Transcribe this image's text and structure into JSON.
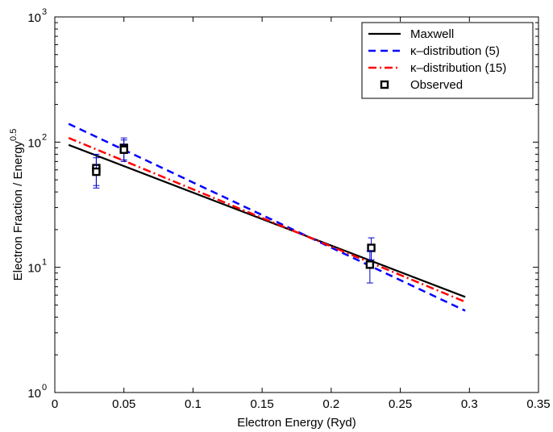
{
  "chart_data": {
    "type": "line",
    "title": "",
    "xlabel": "Electron Energy (Ryd)",
    "ylabel_main": "Electron Fraction / Energy",
    "ylabel_sup": "0.5",
    "xlim": [
      0,
      0.35
    ],
    "ylim": [
      1,
      1000
    ],
    "yscale": "log",
    "grid": false,
    "legend_position": "top-right",
    "x_ticks": [
      0,
      0.05,
      0.1,
      0.15,
      0.2,
      0.25,
      0.3,
      0.35
    ],
    "x_tick_labels": [
      "0",
      "0.05",
      "0.1",
      "0.15",
      "0.2",
      "0.25",
      "0.3",
      "0.35"
    ],
    "y_ticks": [
      1,
      10,
      100,
      1000
    ],
    "y_tick_labels": [
      {
        "base": "10",
        "exp": "0"
      },
      {
        "base": "10",
        "exp": "1"
      },
      {
        "base": "10",
        "exp": "2"
      },
      {
        "base": "10",
        "exp": "3"
      }
    ],
    "series": [
      {
        "name": "Maxwell",
        "style": "solid",
        "color": "#000000",
        "x": [
          0.01,
          0.297
        ],
        "y": [
          95,
          5.8
        ]
      },
      {
        "name": "κ–distribution (5)",
        "style": "dashed",
        "color": "#0000ff",
        "x": [
          0.01,
          0.297
        ],
        "y": [
          140,
          4.5
        ]
      },
      {
        "name": "κ–distribution (15)",
        "style": "dashdot",
        "color": "#ff0000",
        "x": [
          0.01,
          0.297
        ],
        "y": [
          108,
          5.3
        ]
      }
    ],
    "observed": {
      "name": "Observed",
      "color": "#000000",
      "errorbar_color": "#0000cc",
      "points": [
        {
          "x": 0.03,
          "y": 62,
          "ylow": 45,
          "yhigh": 80
        },
        {
          "x": 0.03,
          "y": 58,
          "ylow": 43,
          "yhigh": 75
        },
        {
          "x": 0.05,
          "y": 90,
          "ylow": 72,
          "yhigh": 108
        },
        {
          "x": 0.05,
          "y": 87,
          "ylow": 70,
          "yhigh": 104
        },
        {
          "x": 0.229,
          "y": 14.3,
          "ylow": 11.5,
          "yhigh": 17.2
        },
        {
          "x": 0.228,
          "y": 10.5,
          "ylow": 7.5,
          "yhigh": 13.5
        }
      ]
    }
  }
}
